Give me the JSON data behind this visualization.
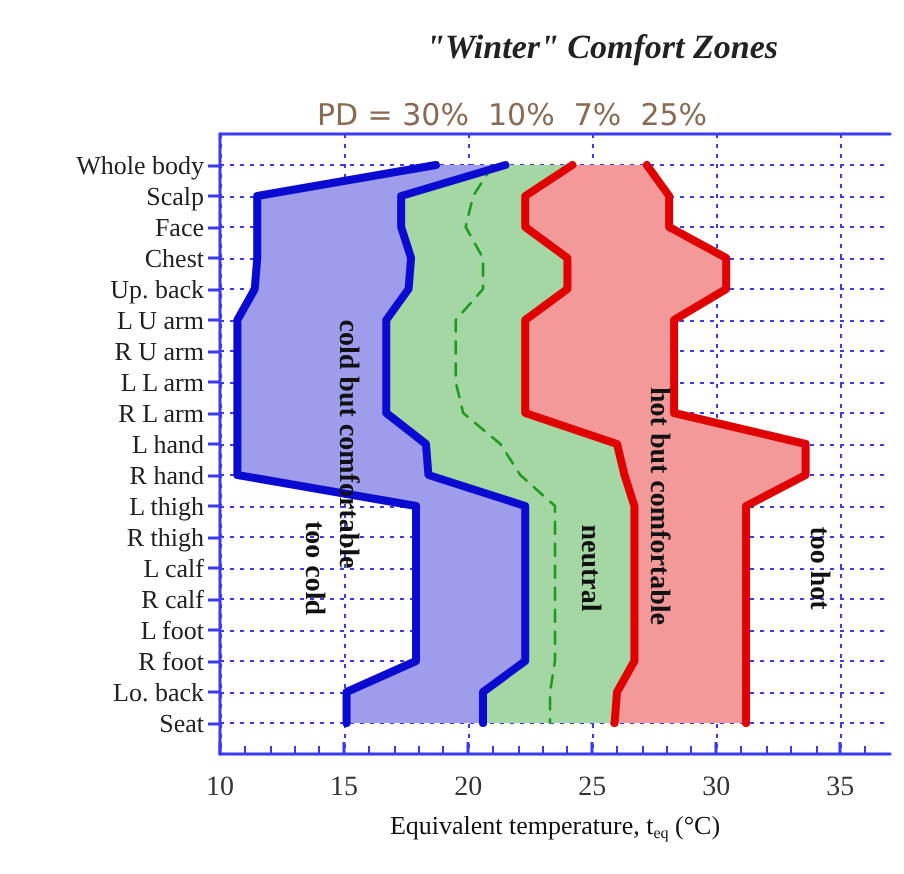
{
  "chart_data": {
    "type": "line",
    "title": "\"Winter\" Comfort Zones",
    "subtitle": "PD = 30%  10%  7%  25%",
    "xlabel": "Equivalent temperature, t$_{eq}$ (°C)",
    "categories": [
      "Whole body",
      "Scalp",
      "Face",
      "Chest",
      "Up. back",
      "L U arm",
      "R U arm",
      "L L arm",
      "R L arm",
      "L hand",
      "R hand",
      "L thigh",
      "R thigh",
      "L calf",
      "R calf",
      "L foot",
      "R foot",
      "Lo. back",
      "Seat"
    ],
    "orientation": "horizontal",
    "series": [
      {
        "color": "#0a0ad0",
        "values": [
          18.7,
          11.5,
          11.5,
          11.5,
          11.4,
          10.7,
          10.7,
          10.7,
          10.7,
          10.7,
          10.7,
          17.9,
          17.9,
          17.9,
          17.9,
          17.9,
          17.9,
          15.1,
          15.1
        ]
      },
      {
        "color": "#0a0ad0",
        "values": [
          21.5,
          17.3,
          17.3,
          17.7,
          17.6,
          16.7,
          16.7,
          16.7,
          16.7,
          18.3,
          18.4,
          22.3,
          22.3,
          22.3,
          22.3,
          22.3,
          22.3,
          20.6,
          20.6
        ],
        "lower": [
          18.7,
          11.5,
          11.5,
          11.5,
          11.4,
          10.7,
          10.7,
          10.7,
          10.7,
          10.7,
          10.7,
          17.9,
          17.9,
          17.9,
          17.9,
          17.9,
          17.9,
          15.1,
          15.1
        ],
        "upper": [
          21.5,
          17.3,
          17.3,
          17.7,
          17.6,
          16.7,
          16.7,
          16.7,
          16.7,
          18.3,
          18.4,
          22.3,
          22.3,
          22.3,
          22.3,
          22.3,
          22.3,
          20.6,
          20.6
        ]
      },
      {
        "color": "#1f9a1f",
        "line_style": "dashed",
        "values": [
          21.0,
          20.2,
          19.9,
          20.6,
          20.6,
          19.5,
          19.5,
          19.5,
          19.8,
          21.3,
          22.1,
          23.5,
          23.5,
          23.5,
          23.5,
          23.5,
          23.5,
          23.3,
          23.3
        ],
        "lower": [
          21.5,
          17.3,
          17.3,
          17.7,
          17.6,
          16.7,
          16.7,
          16.7,
          16.7,
          18.3,
          18.4,
          22.3,
          22.3,
          22.3,
          22.3,
          22.3,
          22.3,
          20.6,
          20.6
        ],
        "upper": [
          24.2,
          22.3,
          22.3,
          24.0,
          24.0,
          22.3,
          22.3,
          22.3,
          22.3,
          26.0,
          26.3,
          26.7,
          26.7,
          26.7,
          26.7,
          26.7,
          26.7,
          26.0,
          25.9
        ]
      },
      {
        "color": "#e00000",
        "values": [
          24.2,
          22.3,
          22.3,
          24.0,
          24.0,
          22.3,
          22.3,
          22.3,
          22.3,
          26.0,
          26.3,
          26.7,
          26.7,
          26.7,
          26.7,
          26.7,
          26.7,
          26.0,
          25.9
        ]
      },
      {
        "color": "#e00000",
        "values": [
          27.2,
          28.1,
          28.1,
          30.4,
          30.4,
          28.3,
          28.3,
          28.3,
          28.3,
          33.6,
          33.6,
          31.2,
          31.2,
          31.2,
          31.2,
          31.2,
          31.2,
          31.2,
          31.2
        ],
        "lower": [
          24.2,
          22.3,
          22.3,
          24.0,
          24.0,
          22.3,
          22.3,
          22.3,
          22.3,
          26.0,
          26.3,
          26.7,
          26.7,
          26.7,
          26.7,
          26.7,
          26.7,
          26.0,
          25.9
        ],
        "upper": [
          27.2,
          28.1,
          28.1,
          30.4,
          30.4,
          28.3,
          28.3,
          28.3,
          28.3,
          33.6,
          33.6,
          31.2,
          31.2,
          31.2,
          31.2,
          31.2,
          31.2,
          31.2,
          31.2
        ]
      }
    ],
    "annotations": [
      "too cold",
      "cold but comfortable",
      "neutral",
      "hot but comfortable",
      "too hot"
    ],
    "xlim": [
      10,
      37
    ],
    "xticks": [
      10,
      15,
      20,
      25,
      30,
      35
    ],
    "grid": true,
    "marker": "none",
    "line_style": "solid"
  }
}
